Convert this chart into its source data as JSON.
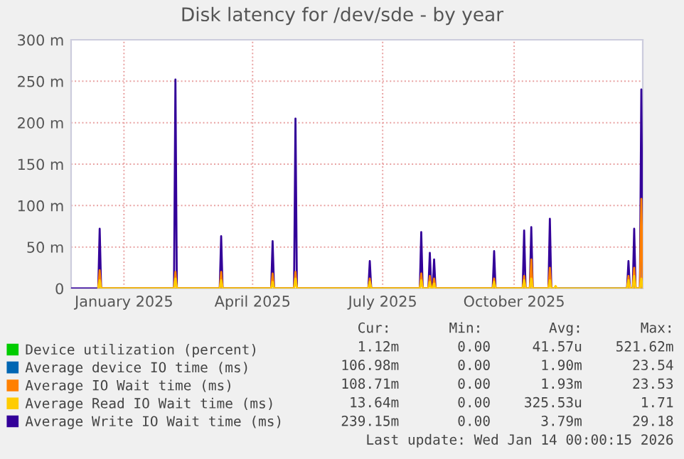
{
  "chart_data": {
    "type": "line",
    "title": "Disk latency for /dev/sde - by year",
    "x": [
      "2024-12-10",
      "2024-12-29",
      "2024-12-30",
      "2024-12-31",
      "2025-02-20",
      "2025-02-21",
      "2025-02-22",
      "2025-03-24",
      "2025-03-25",
      "2025-03-26",
      "2025-04-29",
      "2025-04-30",
      "2025-05-01",
      "2025-05-15",
      "2025-05-16",
      "2025-05-17",
      "2025-07-06",
      "2025-07-07",
      "2025-07-08",
      "2025-08-11",
      "2025-08-12",
      "2025-08-13",
      "2025-08-17",
      "2025-08-18",
      "2025-08-19",
      "2025-08-20",
      "2025-08-21",
      "2025-08-22",
      "2025-10-01",
      "2025-10-02",
      "2025-10-03",
      "2025-10-22",
      "2025-10-23",
      "2025-10-24",
      "2025-10-27",
      "2025-10-28",
      "2025-10-29",
      "2025-11-09",
      "2025-11-10",
      "2025-11-11",
      "2025-11-13",
      "2025-11-14",
      "2025-11-15",
      "2026-01-03",
      "2026-01-04",
      "2026-01-05",
      "2026-01-07",
      "2026-01-08",
      "2026-01-09",
      "2026-01-12",
      "2026-01-13",
      "2026-01-14"
    ],
    "series": [
      {
        "name": "Device utilization (percent)",
        "color": "#00cc00",
        "values": [
          null,
          null,
          null,
          null,
          null,
          null,
          null,
          null,
          null,
          null,
          null,
          null,
          null,
          null,
          null,
          null,
          null,
          null,
          null,
          null,
          null,
          null,
          null,
          null,
          null,
          null,
          null,
          null,
          null,
          null,
          null,
          null,
          null,
          null,
          null,
          null,
          null,
          null,
          null,
          null,
          null,
          null,
          null,
          null,
          null,
          null,
          null,
          null,
          null,
          null,
          null,
          null
        ]
      },
      {
        "name": "Average device IO time (ms)",
        "color": "#0066b3",
        "values": [
          null,
          null,
          null,
          null,
          null,
          null,
          null,
          null,
          null,
          null,
          null,
          null,
          null,
          null,
          null,
          null,
          null,
          null,
          null,
          null,
          null,
          null,
          null,
          null,
          null,
          null,
          null,
          null,
          null,
          null,
          null,
          null,
          null,
          null,
          null,
          null,
          null,
          null,
          null,
          null,
          null,
          null,
          null,
          null,
          null,
          null,
          null,
          null,
          null,
          null,
          null,
          null
        ]
      },
      {
        "name": "Average IO Wait time (ms)",
        "color": "#ff8000",
        "values": [
          null,
          0,
          22,
          0,
          0,
          20,
          0,
          0,
          20,
          0,
          0,
          18,
          0,
          0,
          20,
          0,
          0,
          12,
          0,
          0,
          18,
          0,
          0,
          15,
          0,
          0,
          12,
          0,
          0,
          12,
          0,
          0,
          15,
          0,
          0,
          35,
          0,
          0,
          25,
          0,
          null,
          null,
          null,
          0,
          15,
          0,
          0,
          25,
          0,
          0,
          108,
          0
        ]
      },
      {
        "name": "Average Read IO Wait time (ms)",
        "color": "#ffcc00",
        "values": [
          null,
          0,
          10,
          0,
          0,
          12,
          0,
          0,
          10,
          0,
          0,
          8,
          0,
          0,
          12,
          0,
          0,
          8,
          0,
          0,
          10,
          0,
          0,
          8,
          0,
          0,
          6,
          0,
          0,
          8,
          0,
          0,
          10,
          0,
          0,
          12,
          0,
          0,
          10,
          0,
          0,
          3,
          0,
          0,
          10,
          0,
          0,
          15,
          0,
          0,
          12,
          0
        ]
      },
      {
        "name": "Average Write IO Wait time (ms)",
        "color": "#330099",
        "values": [
          0,
          0,
          72,
          0,
          0,
          252,
          0,
          0,
          63,
          0,
          0,
          57,
          0,
          0,
          205,
          0,
          0,
          33,
          0,
          0,
          68,
          0,
          0,
          43,
          0,
          0,
          35,
          0,
          0,
          45,
          0,
          0,
          70,
          0,
          0,
          74,
          0,
          0,
          84,
          0,
          0,
          0,
          0,
          0,
          33,
          0,
          0,
          72,
          0,
          0,
          240,
          0
        ]
      }
    ],
    "xlim": [
      "2024-12-10",
      "2026-01-14"
    ],
    "xticks": [
      {
        "value": "2025-01-16",
        "label": "January 2025"
      },
      {
        "value": "2025-04-16",
        "label": "April 2025"
      },
      {
        "value": "2025-07-16",
        "label": "July 2025"
      },
      {
        "value": "2025-10-16",
        "label": "October 2025"
      }
    ],
    "ylim": [
      0,
      300
    ],
    "yticks": [
      {
        "value": 0,
        "label": "0"
      },
      {
        "value": 50,
        "label": "50 m"
      },
      {
        "value": 100,
        "label": "100 m"
      },
      {
        "value": 150,
        "label": "150 m"
      },
      {
        "value": 200,
        "label": "200 m"
      },
      {
        "value": 250,
        "label": "250 m"
      },
      {
        "value": 300,
        "label": "300 m"
      }
    ],
    "grid": true,
    "legend": "bottom left",
    "annotations": [
      "Cur:       Min:        Avg:       Max:",
      "   1.12m       0.00     41.57u    521.62m",
      " 106.98m       0.00      1.90m      23.54",
      " 108.71m       0.00      1.93m      23.53",
      "  13.64m       0.00    325.53u       1.71",
      " 239.15m       0.00      3.79m      29.18",
      "Last update: Wed Jan 14 00:00:15 2026"
    ]
  }
}
